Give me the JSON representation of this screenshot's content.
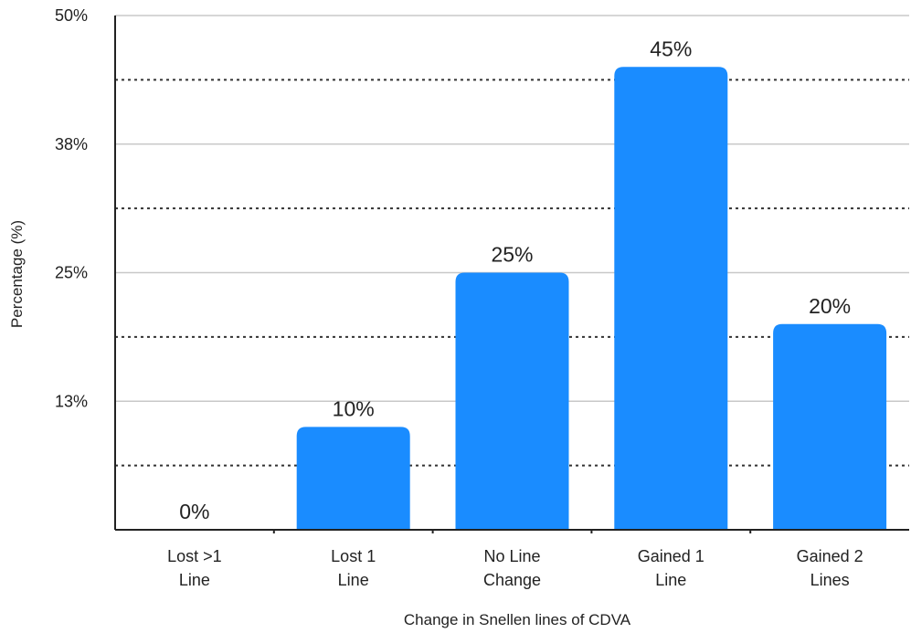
{
  "chart_data": {
    "type": "bar",
    "title": "",
    "xlabel": "Change in Snellen lines of CDVA",
    "ylabel": "Percentage (%)",
    "categories": [
      [
        "Lost >1",
        "Line"
      ],
      [
        "Lost 1",
        "Line"
      ],
      [
        "No Line",
        "Change"
      ],
      [
        "Gained 1",
        "Line"
      ],
      [
        "Gained 2",
        "Lines"
      ]
    ],
    "values": [
      0,
      10,
      25,
      45,
      20
    ],
    "data_labels": [
      "0%",
      "10%",
      "25%",
      "45%",
      "20%"
    ],
    "ylim": [
      0,
      50
    ],
    "yticks": [
      {
        "value": 12.5,
        "label": "13%"
      },
      {
        "value": 25,
        "label": "25%"
      },
      {
        "value": 37.5,
        "label": "38%"
      },
      {
        "value": 50,
        "label": "50%"
      }
    ],
    "minor_gridlines": [
      6.25,
      18.75,
      31.25,
      43.75
    ],
    "grid": true,
    "bar_color": "#1a8cff",
    "gridline_color": "#c8c8c8",
    "minor_gridline_color": "#333333"
  }
}
